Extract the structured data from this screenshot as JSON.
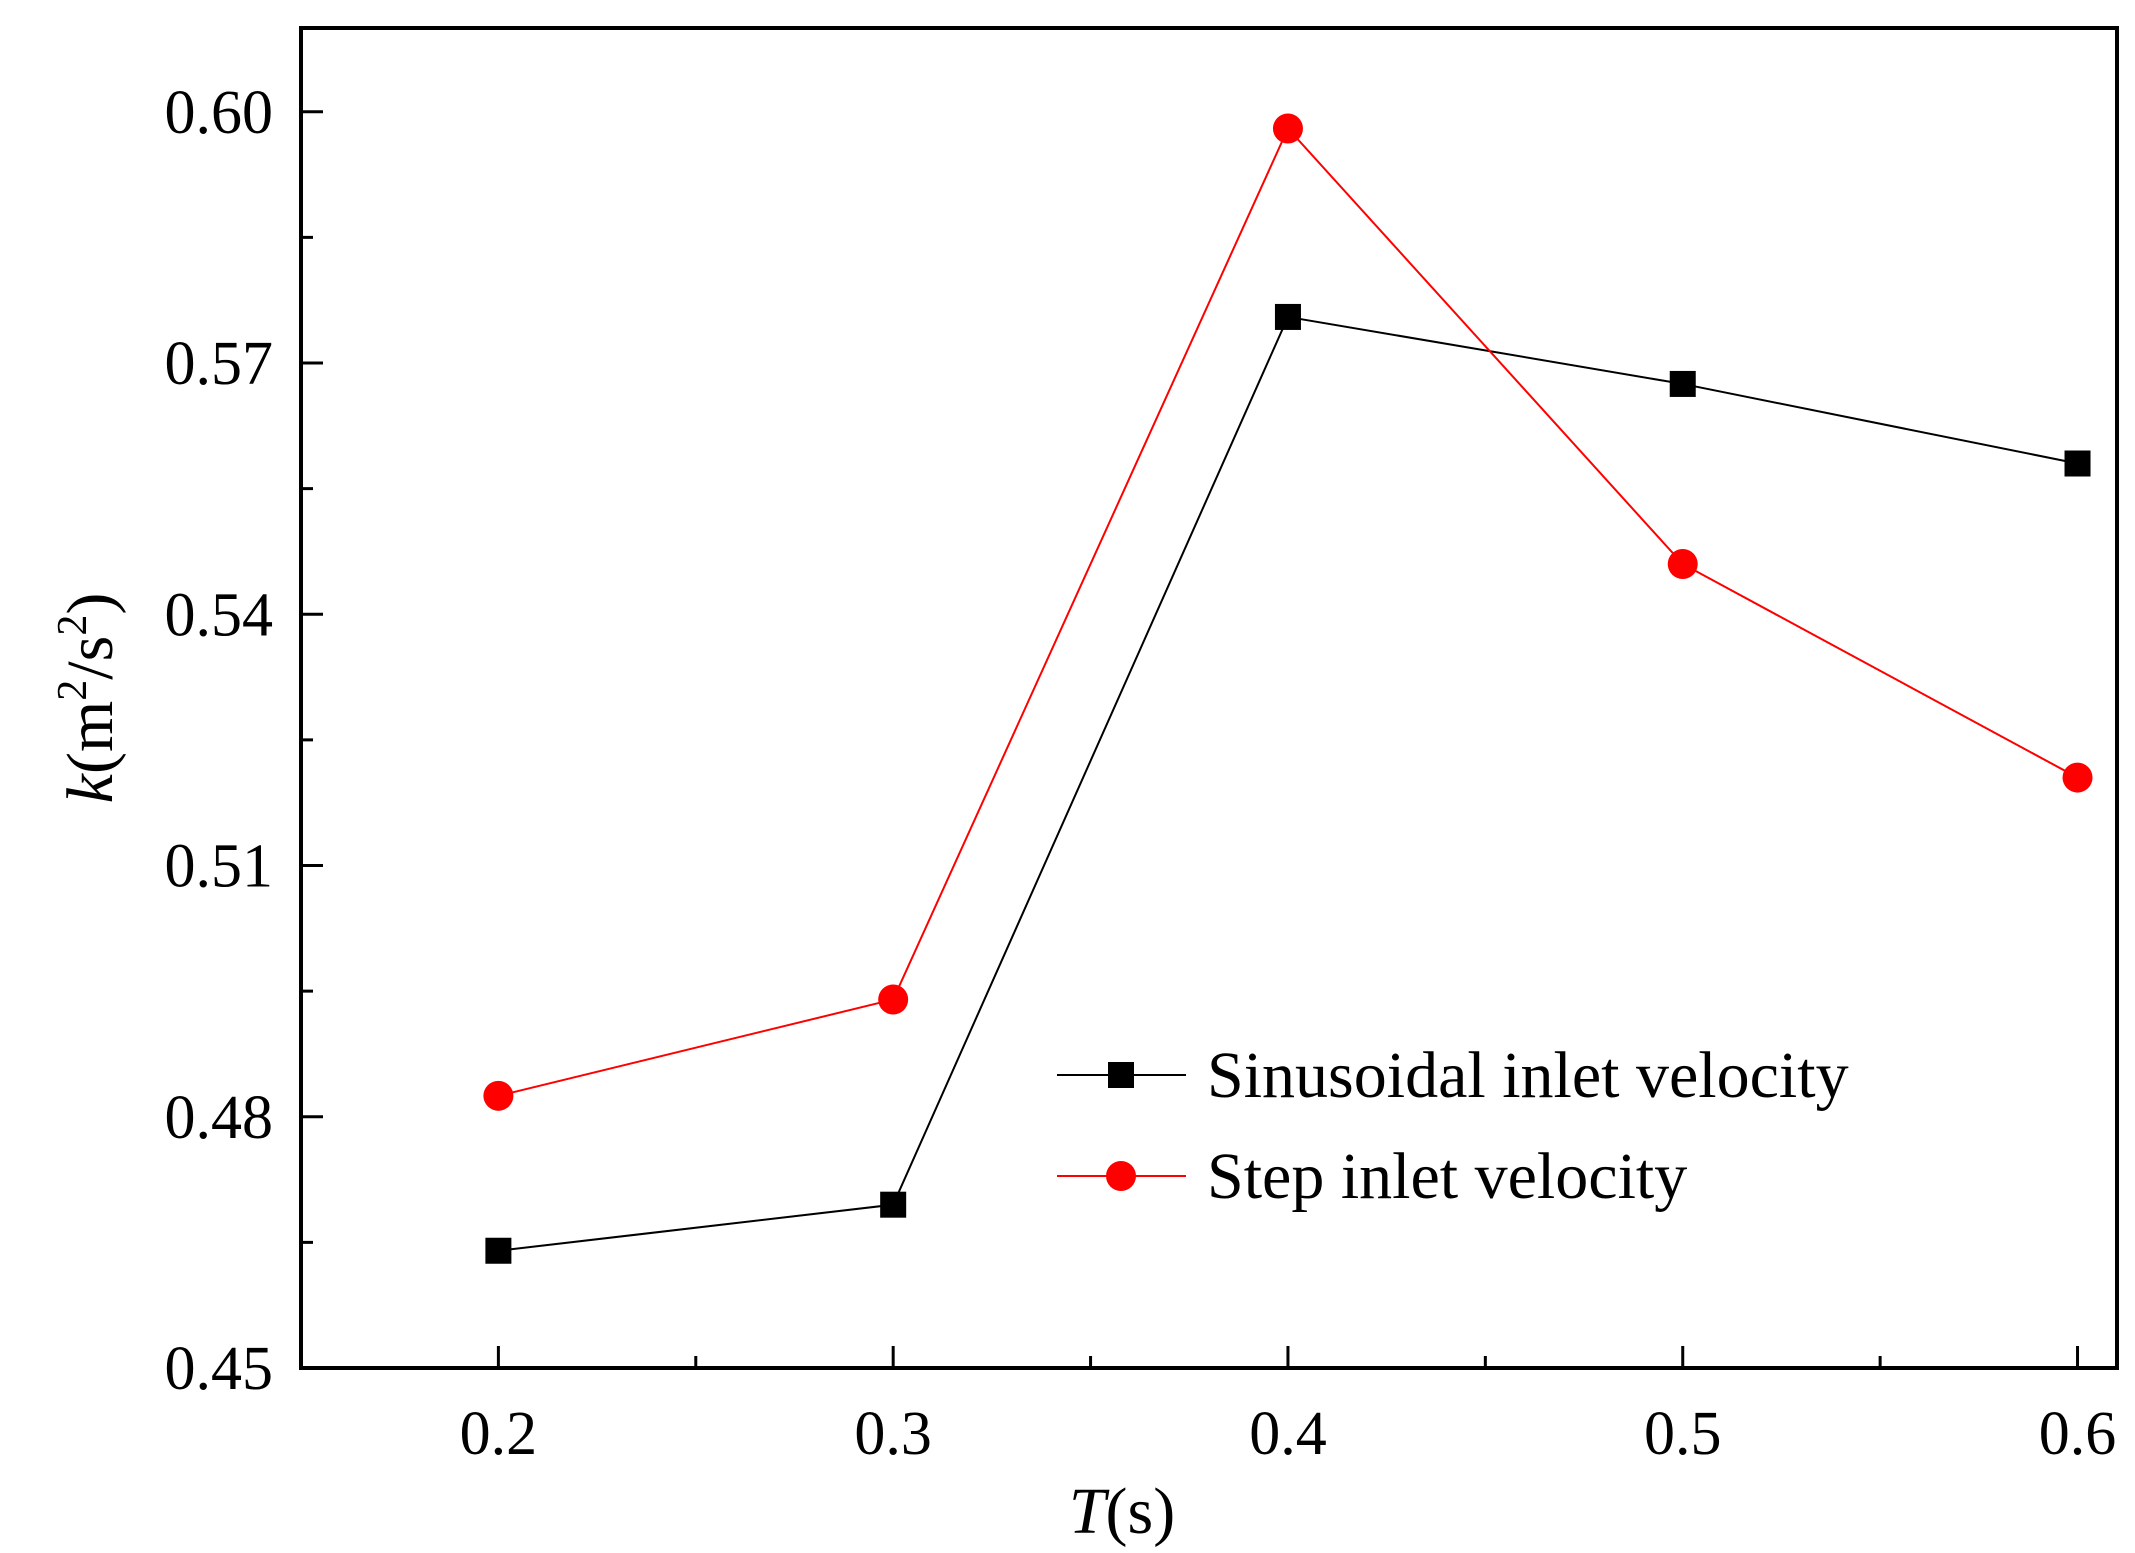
{
  "chart_data": {
    "type": "line",
    "title": "",
    "x": [
      0.2,
      0.3,
      0.4,
      0.5,
      0.6
    ],
    "x_tick_labels": [
      "0.2",
      "0.3",
      "0.4",
      "0.5",
      "0.6"
    ],
    "y_tick_labels": [
      "0.45",
      "0.48",
      "0.51",
      "0.54",
      "0.57",
      "0.60"
    ],
    "y_ticks": [
      0.45,
      0.48,
      0.51,
      0.54,
      0.57,
      0.6
    ],
    "xlim": [
      0.15,
      0.61
    ],
    "ylim": [
      0.45,
      0.61
    ],
    "xlabel": {
      "var": "T",
      "rest": "(s)"
    },
    "ylabel": {
      "var": "k",
      "open": "(m",
      "sup1": "2",
      "mid": "/s",
      "sup2": "2",
      "close": ")"
    },
    "grid": false,
    "legend_position": "lower-right",
    "series": [
      {
        "name": "Sinusoidal inlet velocity",
        "color": "#000000",
        "marker": "square",
        "values": [
          0.464,
          0.4695,
          0.5755,
          0.5675,
          0.558
        ]
      },
      {
        "name": "Step inlet velocity",
        "color": "#ff0000",
        "marker": "circle",
        "values": [
          0.4825,
          0.494,
          0.598,
          0.546,
          0.5205
        ]
      }
    ]
  }
}
